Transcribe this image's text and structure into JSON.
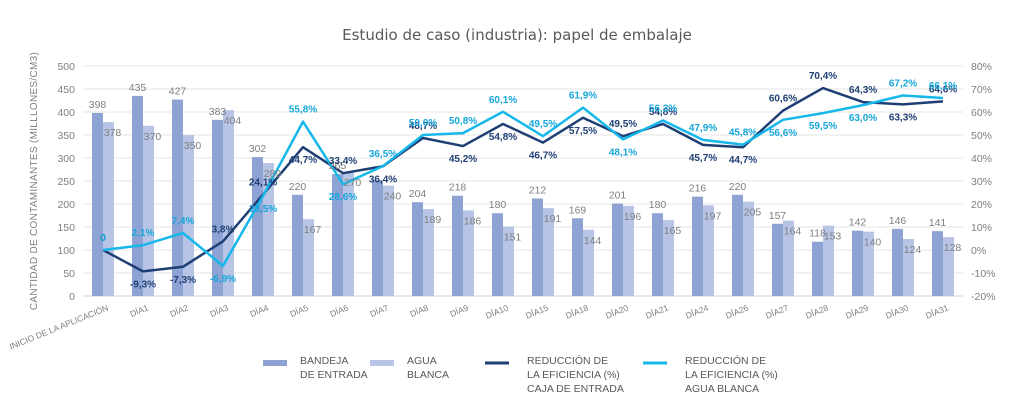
{
  "chart_data": {
    "type": "bar",
    "title": "Estudio de caso (industria): papel de embalaje",
    "ylabel": "CANTIDAD DE  CONTAMINANTES (MILLLONES/CM3)",
    "ylabel_right": "",
    "xlabel": "",
    "ylim": [
      0,
      500
    ],
    "ylim_right": [
      -20,
      80
    ],
    "yticks": [
      0,
      50,
      100,
      150,
      200,
      250,
      300,
      350,
      400,
      450,
      500
    ],
    "yticks_right": [
      "-20%",
      "-10%",
      "0%",
      "10%",
      "20%",
      "30%",
      "40%",
      "50%",
      "60%",
      "70%",
      "80%"
    ],
    "grid": true,
    "legend_position": "bottom",
    "categories": [
      "INICIO DE LA APLICACIÓN",
      "DÍA1",
      "DÍA2",
      "DÍA3",
      "DÍA4",
      "DÍA5",
      "DÍA6",
      "DÍA7",
      "DÍA8",
      "DÍA9",
      "DÍA10",
      "DÍA15",
      "DÍA18",
      "DÍA20",
      "DÍA21",
      "DÍA24",
      "DÍA26",
      "DÍA27",
      "DÍA28",
      "DÍA29",
      "DÍA30",
      "DÍA31"
    ],
    "series": [
      {
        "name": "BANDEJA DE ENTRADA",
        "legend_lines": [
          "BANDEJA",
          "DE ENTRADA"
        ],
        "type": "bar",
        "axis": "left",
        "color": "#8ea3d4",
        "values": [
          398,
          435,
          427,
          383,
          302,
          220,
          265,
          252,
          204,
          218,
          180,
          212,
          169,
          201,
          180,
          216,
          220,
          157,
          118,
          142,
          146,
          141
        ],
        "labels": [
          "398",
          "435",
          "427",
          "383",
          "302",
          "220",
          "265",
          "",
          "204",
          "218",
          "180",
          "212",
          "169",
          "201",
          "180",
          "216",
          "220",
          "157",
          "118",
          "142",
          "146",
          "141"
        ]
      },
      {
        "name": "AGUA BLANCA",
        "legend_lines": [
          "AGUA",
          "BLANCA"
        ],
        "type": "bar",
        "axis": "left",
        "color": "#b7c4e6",
        "values": [
          378,
          370,
          350,
          404,
          289,
          167,
          270,
          240,
          189,
          186,
          151,
          191,
          144,
          196,
          165,
          197,
          205,
          164,
          153,
          140,
          124,
          128
        ],
        "labels": [
          "378",
          "370",
          "350",
          "404",
          "289",
          "167",
          "270",
          "240",
          "189",
          "186",
          "151",
          "191",
          "144",
          "196",
          "165",
          "197",
          "205",
          "164",
          "153",
          "140",
          "124",
          "128"
        ]
      },
      {
        "name": "REDUCCIÓN DE LA EFICIENCIA (%) CAJA DE ENTRADA",
        "legend_lines": [
          "REDUCCIÓN DE",
          "LA EFICIENCIA (%)",
          "CAJA DE ENTRADA"
        ],
        "type": "line",
        "axis": "right",
        "color": "#1f3f74",
        "values": [
          0,
          -9.3,
          -7.3,
          3.8,
          24.1,
          44.7,
          33.4,
          36.4,
          48.7,
          45.2,
          54.8,
          46.7,
          57.5,
          49.5,
          54.8,
          45.7,
          44.7,
          60.6,
          70.4,
          64.3,
          63.3,
          64.6
        ],
        "labels": [
          "0",
          "-9,3%",
          "-7,3%",
          "3,8%",
          "24,1%",
          "44,7%",
          "33,4%",
          "36,4%",
          "48,7%",
          "45,2%",
          "54,8%",
          "46,7%",
          "57,5%",
          "49,5%",
          "54,8%",
          "45,7%",
          "44,7%",
          "60,6%",
          "70,4%",
          "64,3%",
          "63,3%",
          "64,6%"
        ]
      },
      {
        "name": "REDUCCIÓN DE LA EFICIENCIA (%) AGUA BLANCA",
        "legend_lines": [
          "REDUCCIÓN DE",
          "LA EFICIENCIA (%)",
          "AGUA BLANCA"
        ],
        "type": "line",
        "axis": "right",
        "color": "#16b7ea",
        "values": [
          0,
          2.1,
          7.4,
          -6.9,
          23.5,
          55.8,
          28.6,
          36.5,
          50.0,
          50.8,
          60.1,
          49.5,
          61.9,
          48.1,
          56.3,
          47.9,
          45.8,
          56.6,
          59.5,
          63.0,
          67.2,
          66.1
        ],
        "labels": [
          "0",
          "2,1%",
          "7,4%",
          "-6,9%",
          "23,5%",
          "55,8%",
          "28,6%",
          "36,5%",
          "50,0%",
          "50,8%",
          "60,1%",
          "49,5%",
          "61,9%",
          "48,1%",
          "56,3%",
          "47,9%",
          "45,8%",
          "56,6%",
          "59,5%",
          "63,0%",
          "67,2%",
          "66,1%"
        ]
      }
    ]
  }
}
